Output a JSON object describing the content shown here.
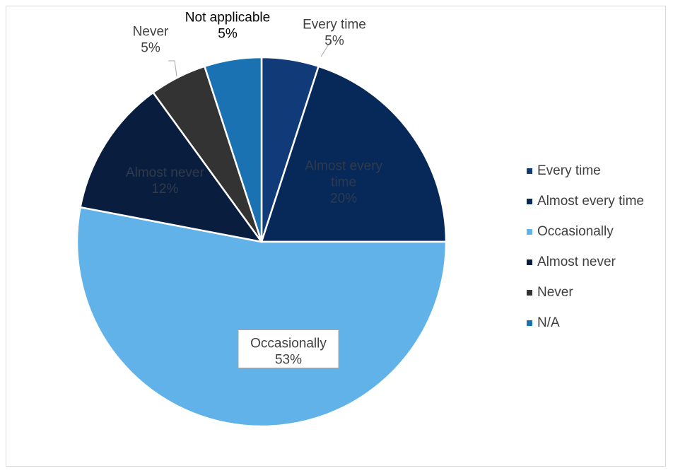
{
  "chart_data": {
    "type": "pie",
    "slices": [
      {
        "name": "Every time",
        "label": "Every time",
        "value": 5,
        "color": "#113B78"
      },
      {
        "name": "Almost every time",
        "label": "Almost every time",
        "value": 20,
        "color": "#06295A"
      },
      {
        "name": "Occasionally",
        "label": "Occasionally",
        "value": 53,
        "color": "#61B2E8"
      },
      {
        "name": "Almost never",
        "label": "Almost never",
        "value": 12,
        "color": "#091E3F"
      },
      {
        "name": "Never",
        "label": "Never",
        "value": 5,
        "color": "#333333"
      },
      {
        "name": "N/A",
        "label": "Not applicable",
        "value": 5,
        "color": "#1B72B2"
      }
    ],
    "value_suffix": "%",
    "legend": {
      "position": "right"
    }
  }
}
